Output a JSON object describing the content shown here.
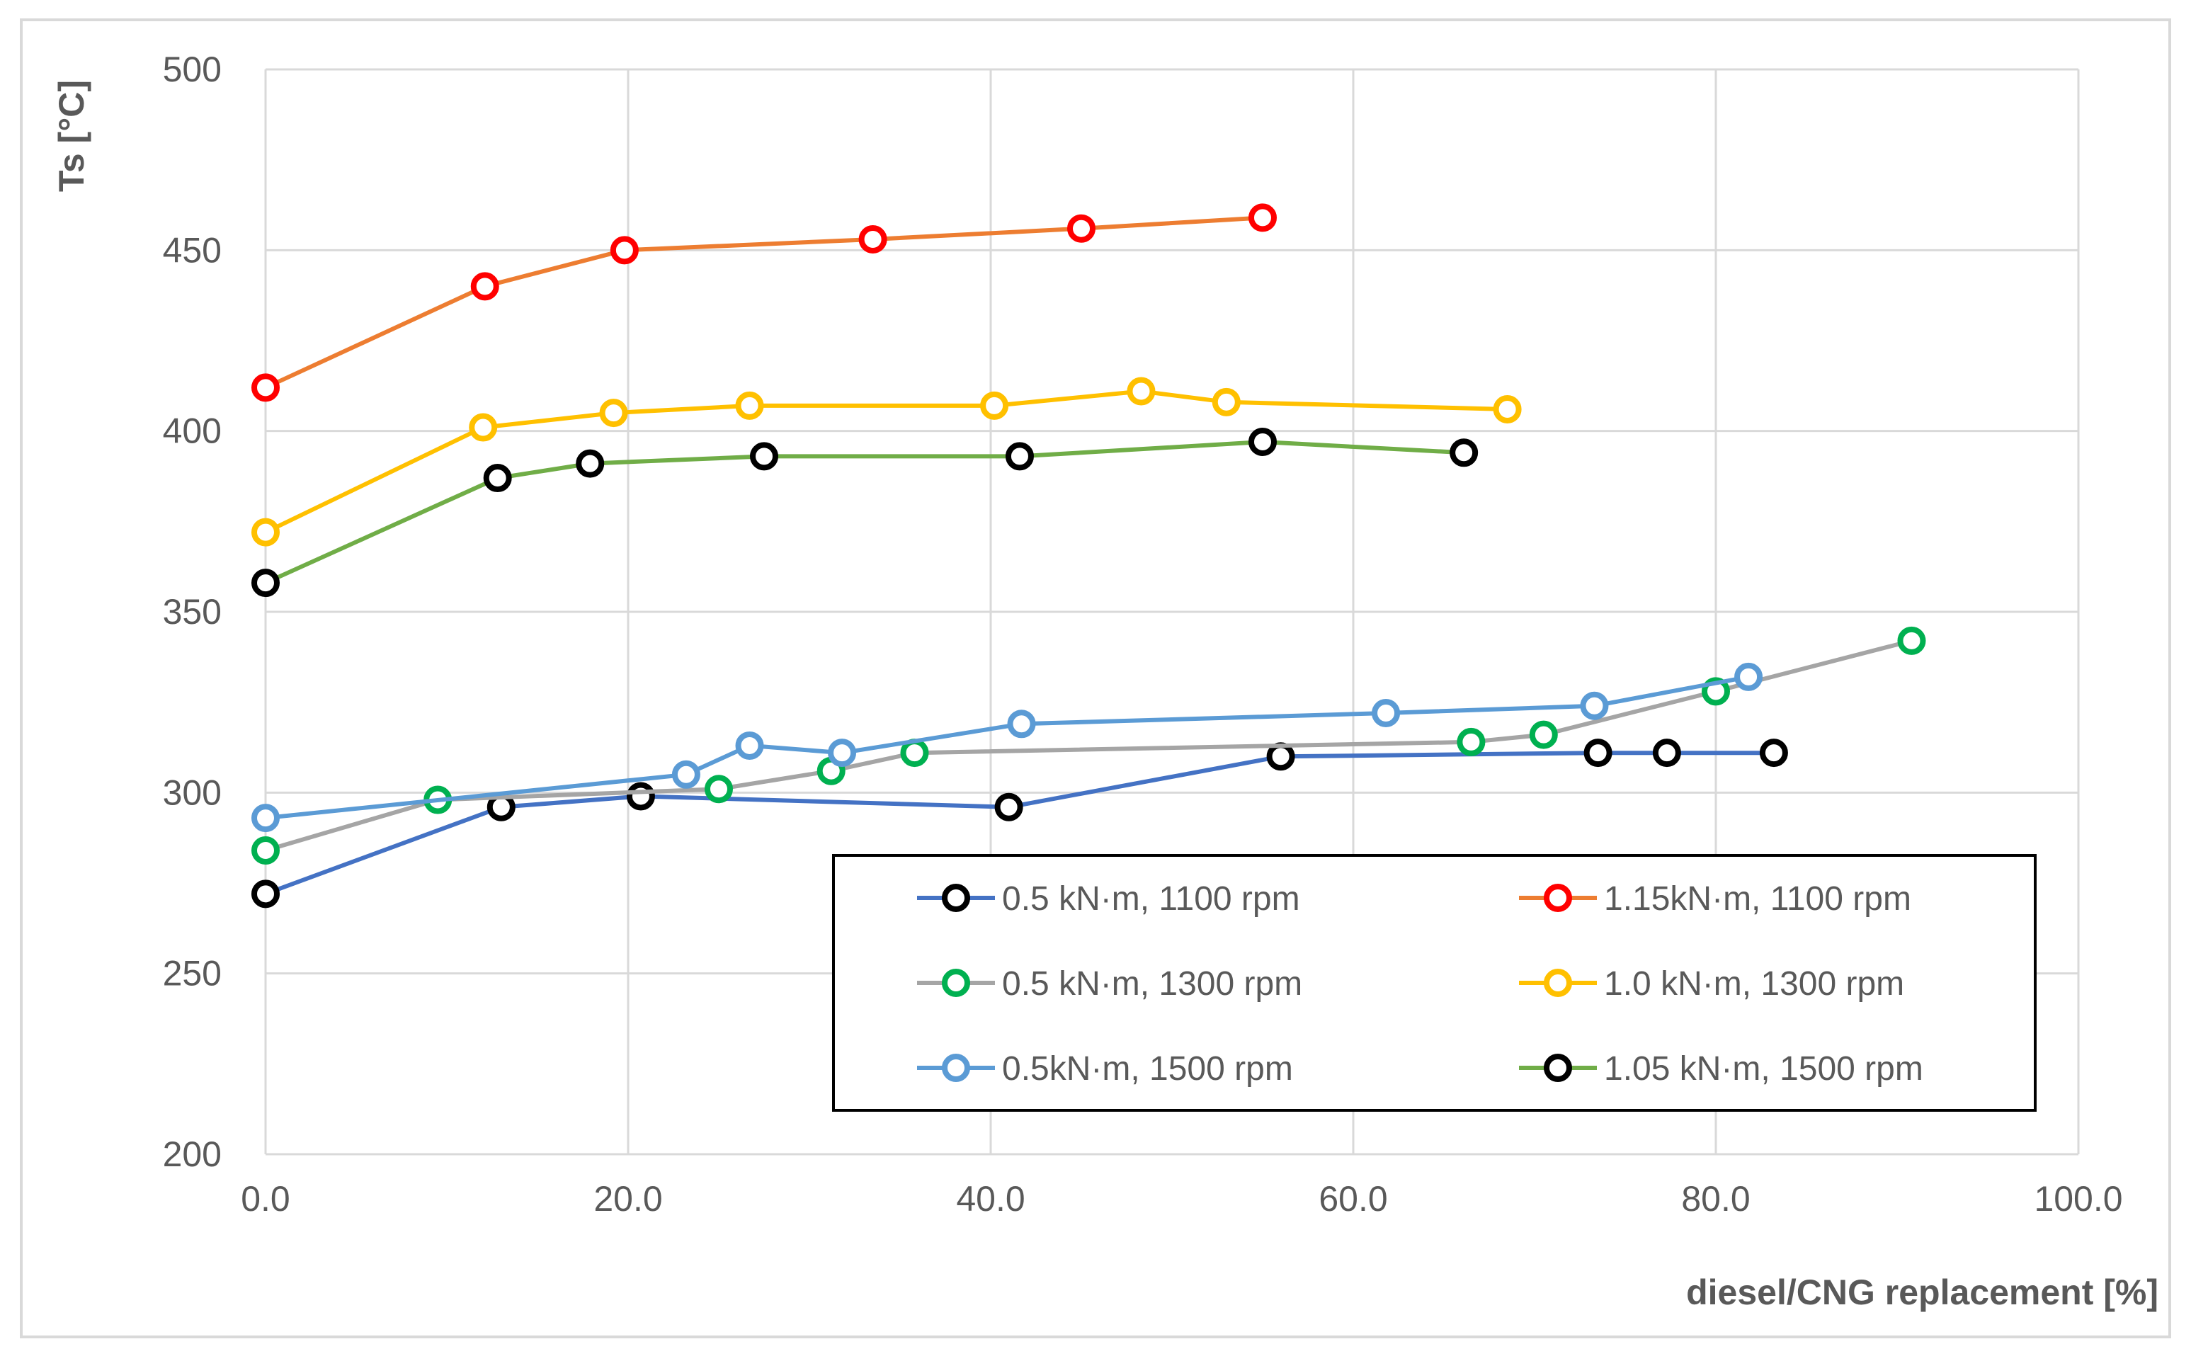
{
  "chart_data": {
    "type": "line",
    "title": "",
    "xlabel": "diesel/CNG replacement [%]",
    "ylabel": "Ts [°C]",
    "xlim": [
      0,
      100
    ],
    "ylim": [
      200,
      500
    ],
    "x_ticks": [
      "0.0",
      "20.0",
      "40.0",
      "60.0",
      "80.0",
      "100.0"
    ],
    "y_ticks": [
      "200",
      "250",
      "300",
      "350",
      "400",
      "450",
      "500"
    ],
    "grid": true,
    "legend_position": "bottom-right",
    "series": [
      {
        "name": "0.5 kN·m, 1100 rpm",
        "line_color": "#4472c4",
        "marker_color": "#000000",
        "x": [
          0.0,
          13.0,
          20.7,
          41.0,
          56.0,
          73.5,
          77.3,
          83.2
        ],
        "y": [
          272,
          296,
          299,
          296,
          310,
          311,
          311,
          311
        ]
      },
      {
        "name": "1.15kN·m, 1100 rpm",
        "line_color": "#ed7d31",
        "marker_color": "#ff0000",
        "x": [
          0.0,
          12.1,
          19.8,
          33.5,
          45.0,
          55.0
        ],
        "y": [
          412,
          440,
          450,
          453,
          456,
          459
        ]
      },
      {
        "name": "0.5 kN·m, 1300 rpm",
        "line_color": "#a5a5a5",
        "marker_color": "#00b050",
        "x": [
          0.0,
          9.5,
          25.0,
          31.2,
          35.8,
          66.5,
          70.5,
          80.0,
          90.8
        ],
        "y": [
          284,
          298,
          301,
          306,
          311,
          314,
          316,
          328,
          342
        ]
      },
      {
        "name": "1.0 kN·m, 1300 rpm",
        "line_color": "#ffc000",
        "marker_color": "#ffc000",
        "x": [
          0.0,
          12.0,
          19.2,
          26.7,
          40.2,
          48.3,
          53.0,
          68.5
        ],
        "y": [
          372,
          401,
          405,
          407,
          407,
          411,
          408,
          406
        ]
      },
      {
        "name": "0.5kN·m, 1500 rpm",
        "line_color": "#5b9bd5",
        "marker_color": "#5b9bd5",
        "x": [
          0.0,
          23.2,
          26.7,
          31.8,
          41.7,
          61.8,
          73.3,
          81.8
        ],
        "y": [
          293,
          305,
          313,
          311,
          319,
          322,
          324,
          332
        ]
      },
      {
        "name": "1.05 kN·m, 1500 rpm",
        "line_color": "#70ad47",
        "marker_color": "#000000",
        "x": [
          0.0,
          12.8,
          17.9,
          27.5,
          41.6,
          55.0,
          66.1
        ],
        "y": [
          358,
          387,
          391,
          393,
          393,
          397,
          394
        ]
      }
    ]
  }
}
